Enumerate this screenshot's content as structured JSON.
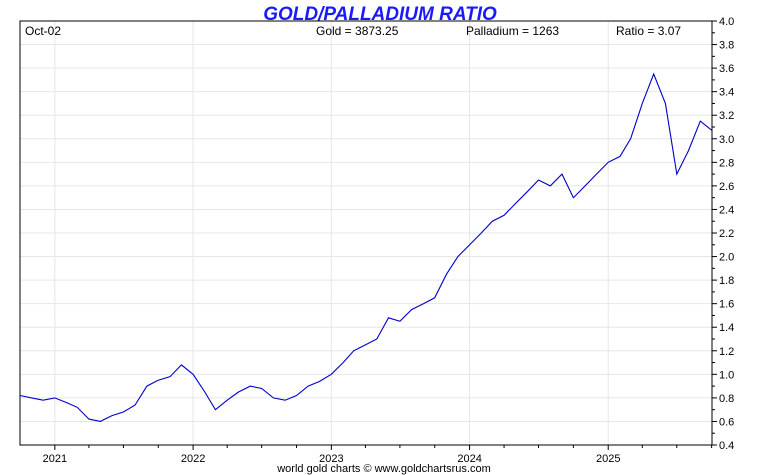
{
  "chart_data": {
    "type": "line",
    "title": "GOLD/PALLADIUM RATIO",
    "date_label": "Oct-02",
    "readouts": {
      "gold": "Gold = 3873.25",
      "palladium": "Palladium = 1263",
      "ratio": "Ratio = 3.07"
    },
    "footer": "world gold charts © www.goldchartsrus.com",
    "title_color": "#1a1aff",
    "line_color": "#0000cc",
    "grid": true,
    "ylim": [
      0.4,
      4.0
    ],
    "y_ticks": [
      "0.4",
      "0.6",
      "0.8",
      "1.0",
      "1.2",
      "1.4",
      "1.6",
      "1.8",
      "2.0",
      "2.2",
      "2.4",
      "2.6",
      "2.8",
      "3.0",
      "3.2",
      "3.4",
      "3.6",
      "3.8",
      "4.0"
    ],
    "x_ticks": [
      "2021",
      "2022",
      "2023",
      "2024",
      "2025"
    ],
    "x_range": [
      "2020-10-01",
      "2025-10-02"
    ],
    "series": [
      {
        "x": [
          "2020-10-01",
          "2020-11-01",
          "2020-12-01",
          "2021-01-01",
          "2021-02-01",
          "2021-03-01",
          "2021-04-01",
          "2021-05-01",
          "2021-06-01",
          "2021-07-01",
          "2021-08-01",
          "2021-09-01",
          "2021-10-01",
          "2021-11-01",
          "2021-12-01",
          "2022-01-01",
          "2022-02-01",
          "2022-03-01",
          "2022-04-01",
          "2022-05-01",
          "2022-06-01",
          "2022-07-01",
          "2022-08-01",
          "2022-09-01",
          "2022-10-01",
          "2022-11-01",
          "2022-12-01",
          "2023-01-01",
          "2023-02-01",
          "2023-03-01",
          "2023-04-01",
          "2023-05-01",
          "2023-06-01",
          "2023-07-01",
          "2023-08-01",
          "2023-09-01",
          "2023-10-01",
          "2023-11-01",
          "2023-12-01",
          "2024-01-01",
          "2024-02-01",
          "2024-03-01",
          "2024-04-01",
          "2024-05-01",
          "2024-06-01",
          "2024-07-01",
          "2024-08-01",
          "2024-09-01",
          "2024-10-01",
          "2024-11-01",
          "2024-12-01",
          "2025-01-01",
          "2025-02-01",
          "2025-03-01",
          "2025-04-01",
          "2025-05-01",
          "2025-06-01",
          "2025-07-01",
          "2025-08-01",
          "2025-09-01",
          "2025-10-02"
        ],
        "y": [
          0.82,
          0.8,
          0.78,
          0.8,
          0.76,
          0.72,
          0.62,
          0.6,
          0.65,
          0.68,
          0.74,
          0.9,
          0.95,
          0.98,
          1.08,
          1.0,
          0.85,
          0.7,
          0.78,
          0.85,
          0.9,
          0.88,
          0.8,
          0.78,
          0.82,
          0.9,
          0.94,
          1.0,
          1.1,
          1.2,
          1.25,
          1.3,
          1.48,
          1.45,
          1.55,
          1.6,
          1.65,
          1.85,
          2.0,
          2.1,
          2.2,
          2.3,
          2.35,
          2.45,
          2.55,
          2.65,
          2.6,
          2.7,
          2.5,
          2.6,
          2.7,
          2.8,
          2.85,
          3.0,
          3.3,
          3.55,
          3.3,
          2.7,
          2.9,
          3.15,
          3.07
        ]
      }
    ]
  }
}
